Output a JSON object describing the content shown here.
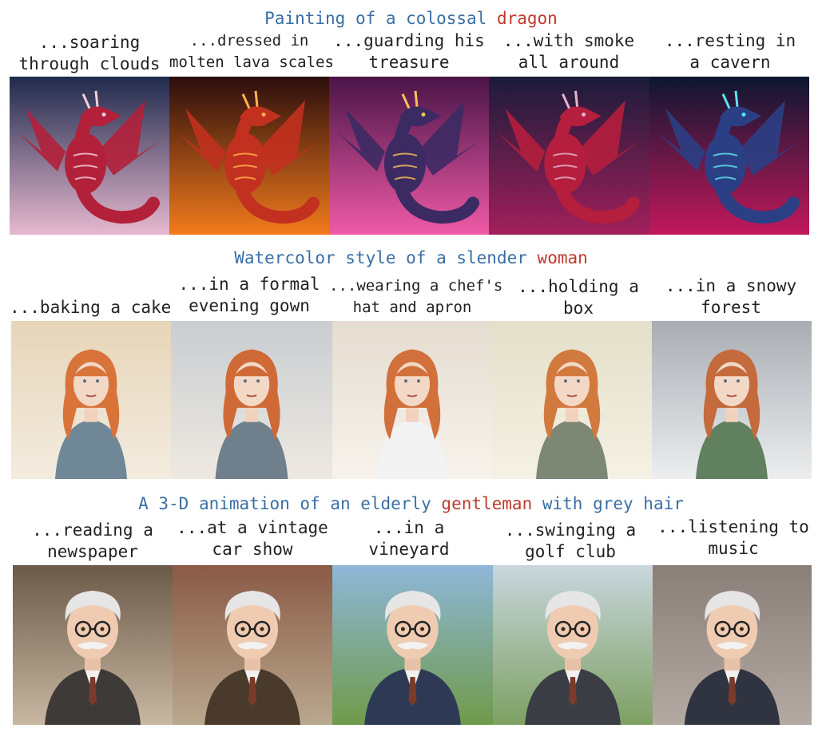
{
  "rows": [
    {
      "prefix": "Painting of a colossal",
      "subject": "dragon",
      "suffix": "",
      "captions": [
        [
          "...soaring",
          "through clouds"
        ],
        [
          "...dressed in",
          "molten lava scales"
        ],
        [
          "...guarding his",
          "treasure"
        ],
        [
          "...with smoke",
          "all around"
        ],
        [
          "...resting in",
          "a cavern"
        ]
      ],
      "images": [
        {
          "icon": "dragon-icon",
          "bg_top": "#1f2a4d",
          "bg_bottom": "#e7b9cf",
          "accent": "#b2203a",
          "detail": "#f1d0dc"
        },
        {
          "icon": "dragon-icon",
          "bg_top": "#2a0d0d",
          "bg_bottom": "#f27b1c",
          "accent": "#c2301f",
          "detail": "#ffb347"
        },
        {
          "icon": "dragon-icon",
          "bg_top": "#4a1548",
          "bg_bottom": "#f05aa6",
          "accent": "#3c2a63",
          "detail": "#f7c25a"
        },
        {
          "icon": "dragon-icon",
          "bg_top": "#1a1c3a",
          "bg_bottom": "#a21f5a",
          "accent": "#b51e3d",
          "detail": "#e6b3cf"
        },
        {
          "icon": "dragon-icon",
          "bg_top": "#0c1730",
          "bg_bottom": "#c2185b",
          "accent": "#2b3f85",
          "detail": "#5ee3f0"
        }
      ]
    },
    {
      "prefix": "Watercolor style of a slender",
      "subject": "woman",
      "suffix": "",
      "captions": [
        [
          "...baking a cake"
        ],
        [
          "...in a formal",
          "evening gown"
        ],
        [
          "...wearing a chef's",
          "hat and apron"
        ],
        [
          "...holding a",
          "box"
        ],
        [
          "...in a snowy",
          "forest"
        ]
      ],
      "images": [
        {
          "icon": "woman-portrait-icon",
          "bg_top": "#e6d5b8",
          "bg_bottom": "#f4ece0",
          "accent": "#6f8796",
          "detail": "#d8733a"
        },
        {
          "icon": "woman-portrait-icon",
          "bg_top": "#c9cdd1",
          "bg_bottom": "#eee9e1",
          "accent": "#6f7f8c",
          "detail": "#cf6a36"
        },
        {
          "icon": "woman-portrait-icon",
          "bg_top": "#e5dcd0",
          "bg_bottom": "#f7f3ec",
          "accent": "#f3f3f3",
          "detail": "#d1703a"
        },
        {
          "icon": "woman-portrait-icon",
          "bg_top": "#e4dfc9",
          "bg_bottom": "#f5f1e4",
          "accent": "#7d8874",
          "detail": "#d2793e"
        },
        {
          "icon": "woman-portrait-icon",
          "bg_top": "#a9adb3",
          "bg_bottom": "#eceeef",
          "accent": "#61805f",
          "detail": "#c46a3c"
        }
      ]
    },
    {
      "prefix": "A 3-D animation of an elderly",
      "subject": "gentleman",
      "suffix": "with grey hair",
      "captions": [
        [
          "...reading a",
          "newspaper"
        ],
        [
          "...at a vintage",
          "car show"
        ],
        [
          "...in a",
          "vineyard"
        ],
        [
          "...swinging a",
          "golf club"
        ],
        [
          "...listening to",
          "music"
        ]
      ],
      "images": [
        {
          "icon": "elderly-man-icon",
          "bg_top": "#6b5a48",
          "bg_bottom": "#c8b7a2",
          "accent": "#3e3a38",
          "detail": "#e9e4dc"
        },
        {
          "icon": "elderly-man-icon",
          "bg_top": "#8a5a45",
          "bg_bottom": "#b9a88e",
          "accent": "#4a3a2c",
          "detail": "#5a7390"
        },
        {
          "icon": "elderly-man-icon",
          "bg_top": "#8fb7d9",
          "bg_bottom": "#6f9a4a",
          "accent": "#2e3a55",
          "detail": "#5a2a4a"
        },
        {
          "icon": "elderly-man-icon",
          "bg_top": "#c9d6dd",
          "bg_bottom": "#7da062",
          "accent": "#3a3d44",
          "detail": "#7a4a2a"
        },
        {
          "icon": "elderly-man-icon",
          "bg_top": "#8a7f78",
          "bg_bottom": "#b4aaa3",
          "accent": "#2f3440",
          "detail": "#1a1a1a"
        }
      ]
    }
  ]
}
